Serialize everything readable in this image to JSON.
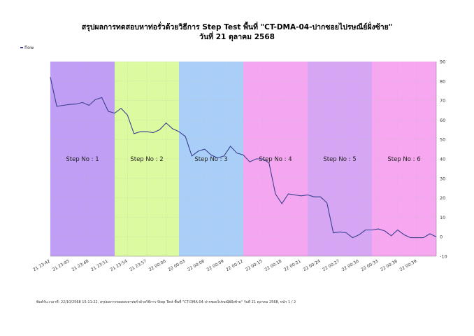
{
  "chart_data": {
    "type": "line",
    "title": "สรุปผลการทดสอบหาท่อรั่วด้วยวิธีการ Step Test พื้นที่ \"CT-DMA-04-ปากซอยไปรษณีย์ฝั่งซ้าย\"",
    "subtitle": "วันที่ 21 ตุลาคม 2568",
    "xlabel": "",
    "ylabel": "",
    "legend": {
      "placement": "top-left",
      "entries": [
        "flow"
      ]
    },
    "ylim": [
      -10,
      90
    ],
    "yticks": [
      90,
      80,
      70,
      60,
      50,
      40,
      30,
      20,
      10,
      0,
      -10
    ],
    "xlim": [
      "21 23:42",
      "22 00:42"
    ],
    "xticks": [
      "21 23:42",
      "21 23:45",
      "21 23:48",
      "21 23:51",
      "21 23:54",
      "21 23:57",
      "22 00:00",
      "22 00:03",
      "22 00:06",
      "22 00:09",
      "22 00:12",
      "22 00:15",
      "22 00:18",
      "22 00:21",
      "22 00:24",
      "22 00:27",
      "22 00:30",
      "22 00:33",
      "22 00:36",
      "22 00:39"
    ],
    "grid": true,
    "steps": [
      {
        "label": "Step No : 1",
        "start": "21 23:42",
        "end": "21 23:52",
        "color": "#c09ef5"
      },
      {
        "label": "Step No : 2",
        "start": "21 23:52",
        "end": "22 00:02",
        "color": "#dcfba0"
      },
      {
        "label": "Step No : 3",
        "start": "22 00:02",
        "end": "22 00:12",
        "color": "#a9cff8"
      },
      {
        "label": "Step No : 4",
        "start": "22 00:12",
        "end": "22 00:22",
        "color": "#f4a7f0"
      },
      {
        "label": "Step No : 5",
        "start": "22 00:22",
        "end": "22 00:32",
        "color": "#d6a6f4"
      },
      {
        "label": "Step No : 6",
        "start": "22 00:32",
        "end": "22 00:42",
        "color": "#f7a6f0"
      }
    ],
    "series": [
      {
        "name": "flow",
        "color": "#3b3f8f",
        "points": [
          [
            "21 23:42",
            82
          ],
          [
            "21 23:43",
            67
          ],
          [
            "21 23:44",
            67.5
          ],
          [
            "21 23:45",
            68
          ],
          [
            "21 23:46",
            68.2
          ],
          [
            "21 23:47",
            69
          ],
          [
            "21 23:48",
            67.5
          ],
          [
            "21 23:49",
            70.5
          ],
          [
            "21 23:50",
            71.5
          ],
          [
            "21 23:51",
            64.5
          ],
          [
            "21 23:52",
            63.5
          ],
          [
            "21 23:53",
            66
          ],
          [
            "21 23:54",
            62.5
          ],
          [
            "21 23:55",
            53
          ],
          [
            "21 23:56",
            54
          ],
          [
            "21 23:57",
            54
          ],
          [
            "21 23:58",
            53.5
          ],
          [
            "21 23:59",
            55
          ],
          [
            "22 00:00",
            58.5
          ],
          [
            "22 00:01",
            55.5
          ],
          [
            "22 00:02",
            54
          ],
          [
            "22 00:03",
            51.5
          ],
          [
            "22 00:04",
            41.5
          ],
          [
            "22 00:05",
            44
          ],
          [
            "22 00:06",
            45
          ],
          [
            "22 00:07",
            42
          ],
          [
            "22 00:08",
            40.5
          ],
          [
            "22 00:09",
            41.5
          ],
          [
            "22 00:10",
            46.5
          ],
          [
            "22 00:11",
            43
          ],
          [
            "22 00:12",
            42
          ],
          [
            "22 00:13",
            38.5
          ],
          [
            "22 00:14",
            40
          ],
          [
            "22 00:15",
            40
          ],
          [
            "22 00:16",
            38
          ],
          [
            "22 00:17",
            22
          ],
          [
            "22 00:18",
            17
          ],
          [
            "22 00:19",
            22
          ],
          [
            "22 00:20",
            21.5
          ],
          [
            "22 00:21",
            21
          ],
          [
            "22 00:22",
            21.5
          ],
          [
            "22 00:23",
            20.5
          ],
          [
            "22 00:24",
            20.5
          ],
          [
            "22 00:25",
            17.5
          ],
          [
            "22 00:26",
            2
          ],
          [
            "22 00:27",
            2.5
          ],
          [
            "22 00:28",
            2
          ],
          [
            "22 00:29",
            -0.5
          ],
          [
            "22 00:30",
            1
          ],
          [
            "22 00:31",
            3.5
          ],
          [
            "22 00:32",
            3.5
          ],
          [
            "22 00:33",
            4
          ],
          [
            "22 00:34",
            3
          ],
          [
            "22 00:35",
            0.5
          ],
          [
            "22 00:36",
            3.5
          ],
          [
            "22 00:37",
            1
          ],
          [
            "22 00:38",
            -0.5
          ],
          [
            "22 00:39",
            -0.5
          ],
          [
            "22 00:40",
            -0.5
          ],
          [
            "22 00:41",
            1.5
          ],
          [
            "22 00:42",
            0
          ]
        ]
      }
    ]
  },
  "footer": "พิมพ์วัน-เวลาที่: 22/10/2568 15:11:22, สรุปผลการทดสอบหาท่อรั่วด้วยวิธีการ Step Test พื้นที่ \"CT-DMA-04-ปากซอยไปรษณีย์ฝั่งซ้าย\" วันที่ 21 ตุลาคม 2568, หน้า 1 / 2"
}
